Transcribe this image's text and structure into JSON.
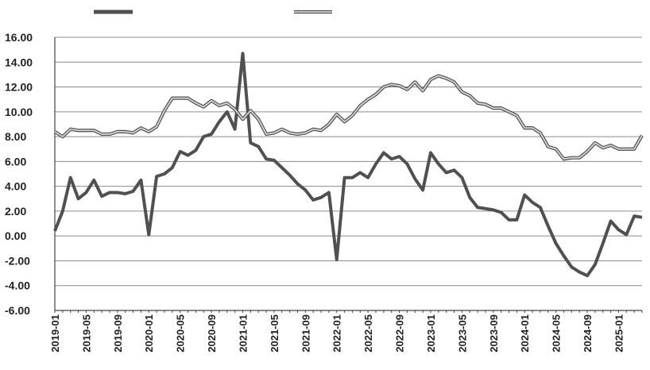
{
  "chart_data": {
    "type": "line",
    "title": "",
    "xlabel": "",
    "ylabel": "",
    "ylim": [
      -6,
      16
    ],
    "yticks": [
      "16.00",
      "14.00",
      "12.00",
      "10.00",
      "8.00",
      "6.00",
      "4.00",
      "2.00",
      "0.00",
      "-2.00",
      "-4.00",
      "-6.00"
    ],
    "xtick_labels": [
      "2019-01",
      "2019-05",
      "2019-09",
      "2020-01",
      "2020-05",
      "2020-09",
      "2021-01",
      "2021-05",
      "2021-09",
      "2022-01",
      "2022-05",
      "2022-09",
      "2023-01",
      "2023-05",
      "2023-09",
      "2024-01",
      "2024-05",
      "2024-09",
      "2025-01"
    ],
    "x": [
      "2019-01",
      "2019-02",
      "2019-03",
      "2019-04",
      "2019-05",
      "2019-06",
      "2019-07",
      "2019-08",
      "2019-09",
      "2019-10",
      "2019-11",
      "2019-12",
      "2020-01",
      "2020-02",
      "2020-03",
      "2020-04",
      "2020-05",
      "2020-06",
      "2020-07",
      "2020-08",
      "2020-09",
      "2020-10",
      "2020-11",
      "2020-12",
      "2021-01",
      "2021-02",
      "2021-03",
      "2021-04",
      "2021-05",
      "2021-06",
      "2021-07",
      "2021-08",
      "2021-09",
      "2021-10",
      "2021-11",
      "2021-12",
      "2022-01",
      "2022-02",
      "2022-03",
      "2022-04",
      "2022-05",
      "2022-06",
      "2022-07",
      "2022-08",
      "2022-09",
      "2022-10",
      "2022-11",
      "2022-12",
      "2023-01",
      "2023-02",
      "2023-03",
      "2023-04",
      "2023-05",
      "2023-06",
      "2023-07",
      "2023-08",
      "2023-09",
      "2023-10",
      "2023-11",
      "2023-12",
      "2024-01",
      "2024-02",
      "2024-03",
      "2024-04",
      "2024-05",
      "2024-06",
      "2024-07",
      "2024-08",
      "2024-09",
      "2024-10",
      "2024-11",
      "2024-12",
      "2025-01",
      "2025-02",
      "2025-03",
      "2025-04"
    ],
    "grid": true,
    "legend_position": "top",
    "series": [
      {
        "color": "#505050",
        "style": "solid-thick",
        "values": [
          0.4,
          2.0,
          4.7,
          3.0,
          3.5,
          4.5,
          3.2,
          3.5,
          3.5,
          3.4,
          3.6,
          4.5,
          0.1,
          4.8,
          5.0,
          5.5,
          6.8,
          6.5,
          6.9,
          8.0,
          8.2,
          9.2,
          10.0,
          8.6,
          14.7,
          7.5,
          7.2,
          6.2,
          6.1,
          5.5,
          4.9,
          4.2,
          3.7,
          2.9,
          3.1,
          3.5,
          -1.9,
          4.7,
          4.7,
          5.1,
          4.7,
          5.8,
          6.7,
          6.2,
          6.4,
          5.8,
          4.6,
          3.7,
          6.7,
          5.8,
          5.1,
          5.3,
          4.7,
          3.1,
          2.3,
          2.2,
          2.1,
          1.9,
          1.3,
          1.3,
          3.3,
          2.7,
          2.3,
          0.8,
          -0.6,
          -1.6,
          -2.5,
          -2.9,
          -3.2,
          -2.3,
          -0.6,
          1.2,
          0.5,
          0.1,
          1.6,
          1.5
        ]
      },
      {
        "color": "#d6d6d6",
        "style": "hollow-double",
        "values": [
          8.4,
          8.0,
          8.6,
          8.5,
          8.5,
          8.5,
          8.2,
          8.2,
          8.4,
          8.4,
          8.3,
          8.7,
          8.4,
          8.8,
          10.1,
          11.1,
          11.1,
          11.1,
          10.7,
          10.4,
          10.9,
          10.5,
          10.7,
          10.2,
          9.4,
          10.1,
          9.4,
          8.2,
          8.3,
          8.6,
          8.3,
          8.2,
          8.3,
          8.6,
          8.5,
          9.0,
          9.8,
          9.2,
          9.7,
          10.5,
          11.0,
          11.4,
          12.0,
          12.2,
          12.1,
          11.8,
          12.4,
          11.7,
          12.6,
          12.9,
          12.7,
          12.4,
          11.6,
          11.3,
          10.7,
          10.6,
          10.3,
          10.3,
          10.0,
          9.7,
          8.7,
          8.7,
          8.3,
          7.2,
          7.0,
          6.2,
          6.3,
          6.3,
          6.8,
          7.5,
          7.1,
          7.3,
          7.0,
          7.0,
          7.0,
          8.1
        ]
      }
    ]
  }
}
